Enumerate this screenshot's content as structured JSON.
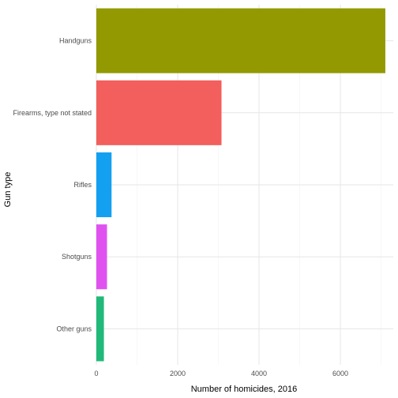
{
  "chart_data": {
    "type": "bar",
    "orientation": "horizontal",
    "title": "",
    "xlabel": "Number of homicides, 2016",
    "ylabel": "Gun type",
    "xlim": [
      0,
      7300
    ],
    "x_ticks": [
      0,
      2000,
      4000,
      6000
    ],
    "x_tick_labels": [
      "0",
      "2000",
      "4000",
      "6000"
    ],
    "grid": true,
    "legend": "none",
    "categories": [
      "Handguns",
      "Firearms, type not stated",
      "Rifles",
      "Shotguns",
      "Other guns"
    ],
    "values": [
      7105,
      3077,
      374,
      262,
      186
    ],
    "colors": [
      "#939900",
      "#f25f5c",
      "#14a0f0",
      "#e052f0",
      "#21b97a"
    ]
  }
}
